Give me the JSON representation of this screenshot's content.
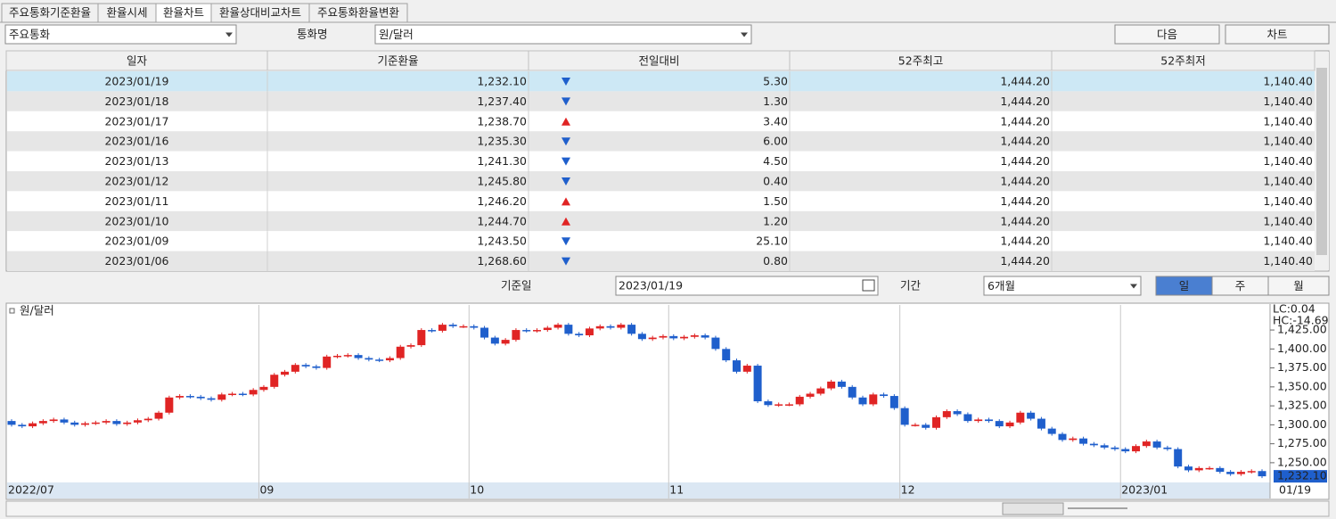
{
  "tabs": [
    "주요통화기준환율",
    "환율시세",
    "환율차트",
    "환율상대비교차트",
    "주요통화환율변환"
  ],
  "filters": {
    "group": "주요통화",
    "currency_label": "통화명",
    "currency": "원/달러",
    "next": "다음",
    "chart": "차트",
    "date_label": "기준일",
    "date": "2023/01/19",
    "period_label": "기간",
    "period": "6개월",
    "units": [
      "일",
      "주",
      "월"
    ]
  },
  "table": {
    "columns": [
      "일자",
      "기준환율",
      "전일대비",
      "52주최고",
      "52주최저"
    ],
    "rows": [
      [
        "2023/01/19",
        "1,232.10",
        "5.30",
        "1,444.20",
        "1,140.40"
      ],
      [
        "2023/01/18",
        "1,237.40",
        "1.30",
        "1,444.20",
        "1,140.40"
      ],
      [
        "2023/01/17",
        "1,238.70",
        "3.40",
        "1,444.20",
        "1,140.40"
      ],
      [
        "2023/01/16",
        "1,235.30",
        "6.00",
        "1,444.20",
        "1,140.40"
      ],
      [
        "2023/01/13",
        "1,241.30",
        "4.50",
        "1,444.20",
        "1,140.40"
      ],
      [
        "2023/01/12",
        "1,245.80",
        "0.40",
        "1,444.20",
        "1,140.40"
      ],
      [
        "2023/01/11",
        "1,246.20",
        "1.50",
        "1,444.20",
        "1,140.40"
      ],
      [
        "2023/01/10",
        "1,244.70",
        "1.20",
        "1,444.20",
        "1,140.40"
      ],
      [
        "2023/01/09",
        "1,243.50",
        "25.10",
        "1,444.20",
        "1,140.40"
      ],
      [
        "2023/01/06",
        "1,268.60",
        "0.80",
        "1,444.20",
        "1,140.40"
      ]
    ],
    "directions": [
      "down",
      "down",
      "up",
      "down",
      "down",
      "down",
      "up",
      "up",
      "down",
      "down"
    ]
  },
  "chart_data": {
    "type": "candlestick",
    "legend": "원/달러",
    "lc_label": "LC:0.04",
    "hc_label": "HC:-14.69",
    "up_color": "#e02424",
    "down_color": "#1f5fcc",
    "categories": [
      "2022/07",
      null,
      null,
      null,
      null,
      null,
      null,
      null,
      null,
      null,
      null,
      null,
      null,
      null,
      null,
      null,
      null,
      null,
      null,
      null,
      null,
      null,
      null,
      null,
      "09",
      null,
      null,
      null,
      null,
      null,
      null,
      null,
      null,
      null,
      null,
      null,
      null,
      null,
      null,
      null,
      null,
      null,
      null,
      null,
      "10",
      null,
      null,
      null,
      null,
      null,
      null,
      null,
      null,
      null,
      null,
      null,
      null,
      null,
      null,
      null,
      null,
      null,
      null,
      "11",
      null,
      null,
      null,
      null,
      null,
      null,
      null,
      null,
      null,
      null,
      null,
      null,
      null,
      null,
      null,
      null,
      null,
      null,
      null,
      null,
      null,
      "12",
      null,
      null,
      null,
      null,
      null,
      null,
      null,
      null,
      null,
      null,
      null,
      null,
      null,
      null,
      null,
      null,
      null,
      null,
      null,
      null,
      "2023/01",
      null,
      null,
      null,
      null,
      null,
      null,
      null,
      null,
      null,
      null,
      null,
      null,
      "01/19"
    ],
    "open": [
      1305,
      1300,
      1298,
      1302,
      1305,
      1307,
      1303,
      1300,
      1302,
      1303,
      1305,
      1301,
      1303,
      1306,
      1308,
      1316,
      1336,
      1338,
      1337,
      1335,
      1333,
      1340,
      1341,
      1340,
      1346,
      1350,
      1366,
      1370,
      1379,
      1377,
      1375,
      1390,
      1391,
      1392,
      1388,
      1386,
      1385,
      1388,
      1403,
      1405,
      1425,
      1424,
      1432,
      1430,
      1430,
      1428,
      1415,
      1407,
      1412,
      1425,
      1424,
      1425,
      1428,
      1432,
      1420,
      1418,
      1427,
      1430,
      1428,
      1432,
      1420,
      1413,
      1415,
      1417,
      1414,
      1416,
      1418,
      1415,
      1400,
      1385,
      1370,
      1378,
      1331,
      1326,
      1327,
      1327,
      1337,
      1341,
      1348,
      1357,
      1350,
      1336,
      1327,
      1340,
      1338,
      1322,
      1300,
      1300,
      1296,
      1310,
      1318,
      1314,
      1305,
      1307,
      1305,
      1298,
      1303,
      1316,
      1308,
      1295,
      1288,
      1280,
      1282,
      1275,
      1273,
      1270,
      1268,
      1265,
      1272,
      1278,
      1270,
      1268,
      1245,
      1240,
      1243,
      1243,
      1238,
      1235,
      1238,
      1239
    ],
    "close": [
      1300,
      1298,
      1302,
      1305,
      1307,
      1303,
      1300,
      1302,
      1303,
      1305,
      1301,
      1303,
      1306,
      1308,
      1316,
      1336,
      1338,
      1337,
      1335,
      1333,
      1340,
      1341,
      1340,
      1346,
      1350,
      1366,
      1370,
      1379,
      1377,
      1375,
      1390,
      1391,
      1392,
      1388,
      1386,
      1385,
      1388,
      1403,
      1405,
      1425,
      1424,
      1432,
      1430,
      1430,
      1428,
      1415,
      1407,
      1412,
      1425,
      1424,
      1425,
      1428,
      1432,
      1420,
      1418,
      1427,
      1430,
      1428,
      1432,
      1420,
      1413,
      1415,
      1417,
      1414,
      1416,
      1418,
      1415,
      1400,
      1385,
      1370,
      1378,
      1331,
      1326,
      1327,
      1327,
      1337,
      1341,
      1348,
      1357,
      1350,
      1336,
      1327,
      1340,
      1338,
      1322,
      1300,
      1300,
      1296,
      1310,
      1318,
      1314,
      1305,
      1307,
      1305,
      1298,
      1303,
      1316,
      1308,
      1295,
      1288,
      1280,
      1282,
      1275,
      1273,
      1270,
      1268,
      1265,
      1272,
      1278,
      1270,
      1268,
      1245,
      1240,
      1243,
      1243,
      1238,
      1235,
      1238,
      1239,
      1232.1
    ],
    "current_label": "1,232.10",
    "ylim": [
      1224,
      1458
    ],
    "yticks": [
      {
        "value": 1250,
        "label": "1,250.00"
      },
      {
        "value": 1275,
        "label": "1,275.00"
      },
      {
        "value": 1300,
        "label": "1,300.00"
      },
      {
        "value": 1325,
        "label": "1,325.00"
      },
      {
        "value": 1350,
        "label": "1,350.00"
      },
      {
        "value": 1375,
        "label": "1,375.00"
      },
      {
        "value": 1400,
        "label": "1,400.00"
      },
      {
        "value": 1425,
        "label": "1,425.00"
      }
    ]
  }
}
